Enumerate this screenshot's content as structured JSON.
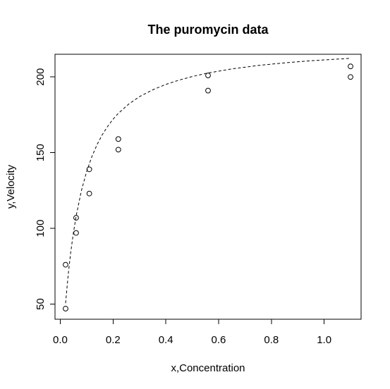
{
  "chart_data": {
    "type": "scatter",
    "title": "The puromycin data",
    "xlabel": "x,Concentration",
    "ylabel": "y,Velocity",
    "xlim": [
      -0.02,
      1.14
    ],
    "ylim": [
      40,
      215
    ],
    "x_ticks": [
      0.0,
      0.2,
      0.4,
      0.6,
      0.8,
      1.0
    ],
    "x_tick_labels": [
      "0.0",
      "0.2",
      "0.4",
      "0.6",
      "0.8",
      "1.0"
    ],
    "y_ticks": [
      50,
      100,
      150,
      200
    ],
    "y_tick_labels": [
      "50",
      "100",
      "150",
      "200"
    ],
    "grid": false,
    "points": [
      {
        "x": 0.02,
        "y": 76
      },
      {
        "x": 0.02,
        "y": 47
      },
      {
        "x": 0.06,
        "y": 97
      },
      {
        "x": 0.06,
        "y": 107
      },
      {
        "x": 0.11,
        "y": 123
      },
      {
        "x": 0.11,
        "y": 139
      },
      {
        "x": 0.22,
        "y": 159
      },
      {
        "x": 0.22,
        "y": 152
      },
      {
        "x": 0.56,
        "y": 191
      },
      {
        "x": 0.56,
        "y": 201
      },
      {
        "x": 1.1,
        "y": 207
      },
      {
        "x": 1.1,
        "y": 200
      }
    ],
    "fit_curve": {
      "style": "dashed",
      "x": [
        0.02,
        0.03,
        0.04,
        0.05,
        0.06,
        0.08,
        0.1,
        0.12,
        0.14,
        0.16,
        0.18,
        0.2,
        0.22,
        0.26,
        0.3,
        0.35,
        0.4,
        0.45,
        0.5,
        0.56,
        0.65,
        0.75,
        0.85,
        0.95,
        1.05,
        1.1
      ],
      "y": [
        50.6,
        69.4,
        84.7,
        97.4,
        108.0,
        124.9,
        137.6,
        147.6,
        155.6,
        162.1,
        167.5,
        172.1,
        176.0,
        182.2,
        187.0,
        191.5,
        195.1,
        197.9,
        200.3,
        202.6,
        205.3,
        207.6,
        209.3,
        210.7,
        211.8,
        212.3
      ]
    }
  }
}
